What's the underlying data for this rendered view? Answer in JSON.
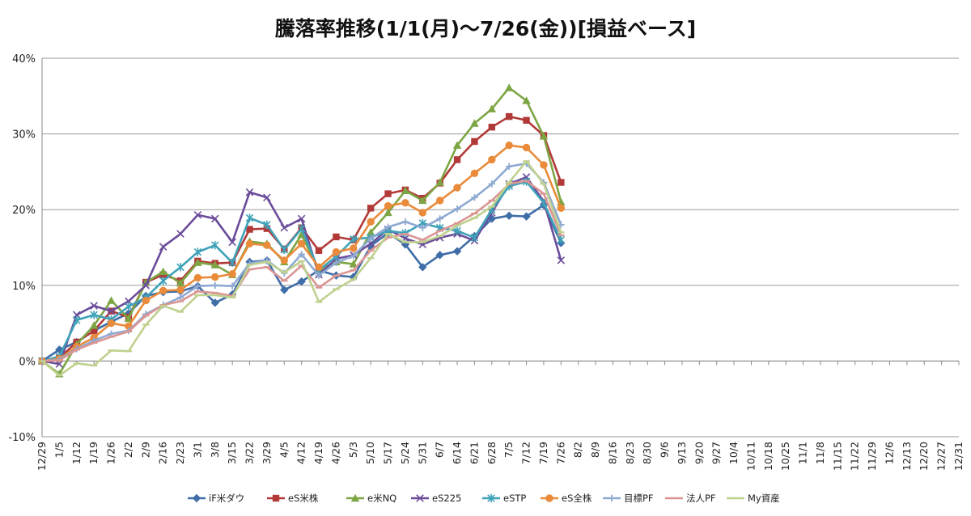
{
  "chart_data": {
    "type": "line",
    "title": "騰落率推移(1/1(月)～7/26(金))[損益ベース]",
    "xlabel": "",
    "ylabel": "",
    "ylim": [
      -0.1,
      0.4
    ],
    "y_ticks": [
      -0.1,
      0.0,
      0.1,
      0.2,
      0.3,
      0.4
    ],
    "y_tick_labels": [
      "-10%",
      "0%",
      "10%",
      "20%",
      "30%",
      "40%"
    ],
    "grid": "horizontal",
    "legend_position": "bottom",
    "categories": [
      "12/29",
      "1/5",
      "1/12",
      "1/19",
      "1/26",
      "2/2",
      "2/9",
      "2/16",
      "2/23",
      "3/1",
      "3/8",
      "3/15",
      "3/22",
      "3/29",
      "4/5",
      "4/12",
      "4/19",
      "4/26",
      "5/3",
      "5/10",
      "5/17",
      "5/24",
      "5/31",
      "6/7",
      "6/14",
      "6/21",
      "6/28",
      "7/5",
      "7/12",
      "7/19",
      "7/26",
      "8/2",
      "8/9",
      "8/16",
      "8/23",
      "8/30",
      "9/6",
      "9/13",
      "9/20",
      "9/27",
      "10/4",
      "10/11",
      "10/18",
      "10/25",
      "11/1",
      "11/8",
      "11/15",
      "11/22",
      "11/29",
      "12/6",
      "12/13",
      "12/20",
      "12/27",
      "12/31"
    ],
    "series": [
      {
        "name": "iF米ダウ",
        "color": "#3F6DA8",
        "marker": "diamond",
        "values": [
          0.0,
          0.015,
          0.025,
          0.04,
          0.052,
          0.063,
          0.086,
          0.091,
          0.092,
          0.099,
          0.077,
          0.088,
          0.131,
          0.133,
          0.094,
          0.105,
          0.12,
          0.113,
          0.111,
          0.152,
          0.169,
          0.154,
          0.124,
          0.14,
          0.145,
          0.165,
          0.188,
          0.192,
          0.191,
          0.206,
          0.156,
          0.0,
          0.0,
          0.0,
          0.0,
          0.0,
          0.0,
          0.0,
          0.0,
          0.0,
          0.0,
          0.0,
          0.0,
          0.0,
          0.0,
          0.0,
          0.0,
          0.0,
          0.0,
          0.0,
          0.0,
          0.0,
          0.0,
          0.0
        ]
      },
      {
        "name": "eS米株",
        "color": "#B13A38",
        "marker": "square",
        "values": [
          0.0,
          0.004,
          0.025,
          0.04,
          0.066,
          0.058,
          0.104,
          0.114,
          0.106,
          0.132,
          0.129,
          0.13,
          0.174,
          0.175,
          0.148,
          0.176,
          0.146,
          0.164,
          0.16,
          0.202,
          0.221,
          0.226,
          0.215,
          0.235,
          0.266,
          0.29,
          0.309,
          0.323,
          0.318,
          0.298,
          0.236,
          0.0,
          0.0,
          0.0,
          0.0,
          0.0,
          0.0,
          0.0,
          0.0,
          0.0,
          0.0,
          0.0,
          0.0,
          0.0,
          0.0,
          0.0,
          0.0,
          0.0,
          0.0,
          0.0,
          0.0,
          0.0,
          0.0,
          0.0
        ]
      },
      {
        "name": "e米NQ",
        "color": "#7DA544",
        "marker": "triangle",
        "values": [
          0.0,
          -0.017,
          0.022,
          0.047,
          0.08,
          0.056,
          0.104,
          0.118,
          0.103,
          0.13,
          0.127,
          0.114,
          0.158,
          0.155,
          0.131,
          0.167,
          0.12,
          0.131,
          0.128,
          0.17,
          0.196,
          0.225,
          0.212,
          0.236,
          0.285,
          0.314,
          0.333,
          0.361,
          0.344,
          0.297,
          0.21,
          0.0,
          0.0,
          0.0,
          0.0,
          0.0,
          0.0,
          0.0,
          0.0,
          0.0,
          0.0,
          0.0,
          0.0,
          0.0,
          0.0,
          0.0,
          0.0,
          0.0,
          0.0,
          0.0,
          0.0,
          0.0,
          0.0,
          0.0
        ]
      },
      {
        "name": "eS225",
        "color": "#6B4C9A",
        "marker": "x",
        "values": [
          0.0,
          -0.004,
          0.061,
          0.073,
          0.066,
          0.079,
          0.1,
          0.151,
          0.168,
          0.193,
          0.188,
          0.157,
          0.223,
          0.216,
          0.176,
          0.188,
          0.114,
          0.135,
          0.14,
          0.155,
          0.174,
          0.162,
          0.154,
          0.163,
          0.168,
          0.159,
          0.196,
          0.234,
          0.243,
          0.211,
          0.133,
          0.0,
          0.0,
          0.0,
          0.0,
          0.0,
          0.0,
          0.0,
          0.0,
          0.0,
          0.0,
          0.0,
          0.0,
          0.0,
          0.0,
          0.0,
          0.0,
          0.0,
          0.0,
          0.0,
          0.0,
          0.0,
          0.0,
          0.0
        ]
      },
      {
        "name": "eSTP",
        "color": "#3FA2B8",
        "marker": "star",
        "values": [
          0.0,
          0.006,
          0.054,
          0.061,
          0.055,
          0.072,
          0.084,
          0.106,
          0.124,
          0.144,
          0.153,
          0.13,
          0.189,
          0.18,
          0.147,
          0.175,
          0.12,
          0.138,
          0.161,
          0.163,
          0.172,
          0.169,
          0.182,
          0.176,
          0.172,
          0.163,
          0.2,
          0.231,
          0.237,
          0.209,
          0.16,
          0.0,
          0.0,
          0.0,
          0.0,
          0.0,
          0.0,
          0.0,
          0.0,
          0.0,
          0.0,
          0.0,
          0.0,
          0.0,
          0.0,
          0.0,
          0.0,
          0.0,
          0.0,
          0.0,
          0.0,
          0.0,
          0.0,
          0.0
        ]
      },
      {
        "name": "eS全株",
        "color": "#E98B3A",
        "marker": "circle",
        "values": [
          0.0,
          0.003,
          0.019,
          0.031,
          0.05,
          0.046,
          0.08,
          0.093,
          0.094,
          0.11,
          0.111,
          0.115,
          0.155,
          0.153,
          0.133,
          0.155,
          0.124,
          0.144,
          0.149,
          0.184,
          0.205,
          0.209,
          0.196,
          0.212,
          0.229,
          0.248,
          0.266,
          0.285,
          0.282,
          0.259,
          0.202,
          0.0,
          0.0,
          0.0,
          0.0,
          0.0,
          0.0,
          0.0,
          0.0,
          0.0,
          0.0,
          0.0,
          0.0,
          0.0,
          0.0,
          0.0,
          0.0,
          0.0,
          0.0,
          0.0,
          0.0,
          0.0,
          0.0,
          0.0
        ]
      },
      {
        "name": "目標PF",
        "color": "#8EA9D2",
        "marker": "plus",
        "values": [
          0.0,
          0.002,
          0.016,
          0.027,
          0.036,
          0.04,
          0.062,
          0.074,
          0.084,
          0.099,
          0.1,
          0.099,
          0.129,
          0.133,
          0.116,
          0.141,
          0.113,
          0.13,
          0.139,
          0.162,
          0.177,
          0.184,
          0.176,
          0.188,
          0.201,
          0.216,
          0.234,
          0.257,
          0.261,
          0.236,
          0.18,
          0.0,
          0.0,
          0.0,
          0.0,
          0.0,
          0.0,
          0.0,
          0.0,
          0.0,
          0.0,
          0.0,
          0.0,
          0.0,
          0.0,
          0.0,
          0.0,
          0.0,
          0.0,
          0.0,
          0.0,
          0.0,
          0.0,
          0.0
        ]
      },
      {
        "name": "法人PF",
        "color": "#DA9694",
        "marker": "dash",
        "values": [
          0.0,
          0.001,
          0.015,
          0.024,
          0.032,
          0.039,
          0.06,
          0.074,
          0.079,
          0.092,
          0.09,
          0.086,
          0.121,
          0.124,
          0.106,
          0.126,
          0.097,
          0.113,
          0.12,
          0.146,
          0.163,
          0.168,
          0.16,
          0.172,
          0.182,
          0.195,
          0.212,
          0.234,
          0.238,
          0.221,
          0.166,
          0.0,
          0.0,
          0.0,
          0.0,
          0.0,
          0.0,
          0.0,
          0.0,
          0.0,
          0.0,
          0.0,
          0.0,
          0.0,
          0.0,
          0.0,
          0.0,
          0.0,
          0.0,
          0.0,
          0.0,
          0.0,
          0.0,
          0.0
        ]
      },
      {
        "name": "My資産",
        "color": "#BFD18F",
        "marker": "dash",
        "values": [
          0.0,
          -0.019,
          -0.003,
          -0.006,
          0.014,
          0.013,
          0.048,
          0.073,
          0.065,
          0.087,
          0.087,
          0.084,
          0.127,
          0.131,
          0.117,
          0.132,
          0.078,
          0.095,
          0.108,
          0.136,
          0.168,
          0.157,
          0.157,
          0.165,
          0.179,
          0.189,
          0.204,
          0.236,
          0.264,
          0.234,
          0.17,
          0.0,
          0.0,
          0.0,
          0.0,
          0.0,
          0.0,
          0.0,
          0.0,
          0.0,
          0.0,
          0.0,
          0.0,
          0.0,
          0.0,
          0.0,
          0.0,
          0.0,
          0.0,
          0.0,
          0.0,
          0.0,
          0.0,
          0.0
        ]
      }
    ],
    "series_points_shown": 31
  }
}
